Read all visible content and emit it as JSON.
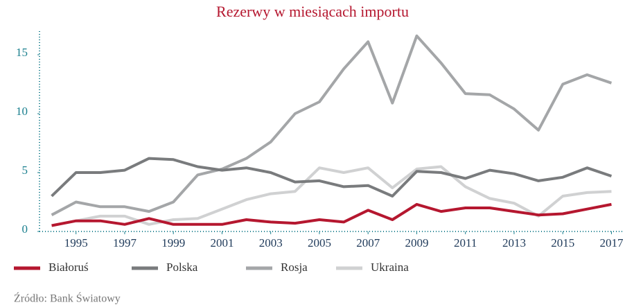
{
  "chart_data": {
    "type": "line",
    "title": "Rezerwy w miesiącach importu",
    "source": "Źródło: Bank Światowy",
    "x": [
      1994,
      1995,
      1996,
      1997,
      1998,
      1999,
      2000,
      2001,
      2002,
      2003,
      2004,
      2005,
      2006,
      2007,
      2008,
      2009,
      2010,
      2011,
      2012,
      2013,
      2014,
      2015,
      2016,
      2017
    ],
    "series": [
      {
        "name": "Białoruś",
        "color": "#b5172f",
        "values": [
          0.5,
          0.9,
          0.9,
          0.6,
          1.1,
          0.6,
          0.6,
          0.6,
          1.0,
          0.8,
          0.7,
          1.0,
          0.8,
          1.8,
          1.0,
          2.3,
          1.7,
          2.0,
          2.0,
          1.7,
          1.4,
          1.5,
          1.9,
          2.3
        ]
      },
      {
        "name": "Polska",
        "color": "#797b7d",
        "values": [
          3.0,
          5.0,
          5.0,
          5.2,
          6.2,
          6.1,
          5.5,
          5.2,
          5.4,
          5.0,
          4.2,
          4.3,
          3.8,
          3.9,
          3.0,
          5.1,
          5.0,
          4.5,
          5.2,
          4.9,
          4.3,
          4.6,
          5.4,
          4.7
        ]
      },
      {
        "name": "Rosja",
        "color": "#a4a6a8",
        "values": [
          1.4,
          2.5,
          2.1,
          2.1,
          1.7,
          2.5,
          4.8,
          5.3,
          6.2,
          7.6,
          10.0,
          11.0,
          13.8,
          16.1,
          10.9,
          16.6,
          14.3,
          11.7,
          11.6,
          10.4,
          8.6,
          12.5,
          13.3,
          12.6
        ]
      },
      {
        "name": "Ukraina",
        "color": "#d0d1d2",
        "values": [
          null,
          0.9,
          1.3,
          1.3,
          0.6,
          1.0,
          1.1,
          1.9,
          2.7,
          3.2,
          3.4,
          5.4,
          5.0,
          5.4,
          3.7,
          5.3,
          5.5,
          3.8,
          2.8,
          2.4,
          1.3,
          3.0,
          3.3,
          3.4
        ]
      }
    ],
    "xlim": [
      1993.5,
      2017.5
    ],
    "xticks": [
      1995,
      1997,
      1999,
      2001,
      2003,
      2005,
      2007,
      2009,
      2011,
      2013,
      2015,
      2017
    ],
    "ylim": [
      0,
      17
    ],
    "yticks": [
      0,
      5,
      10,
      15
    ]
  }
}
